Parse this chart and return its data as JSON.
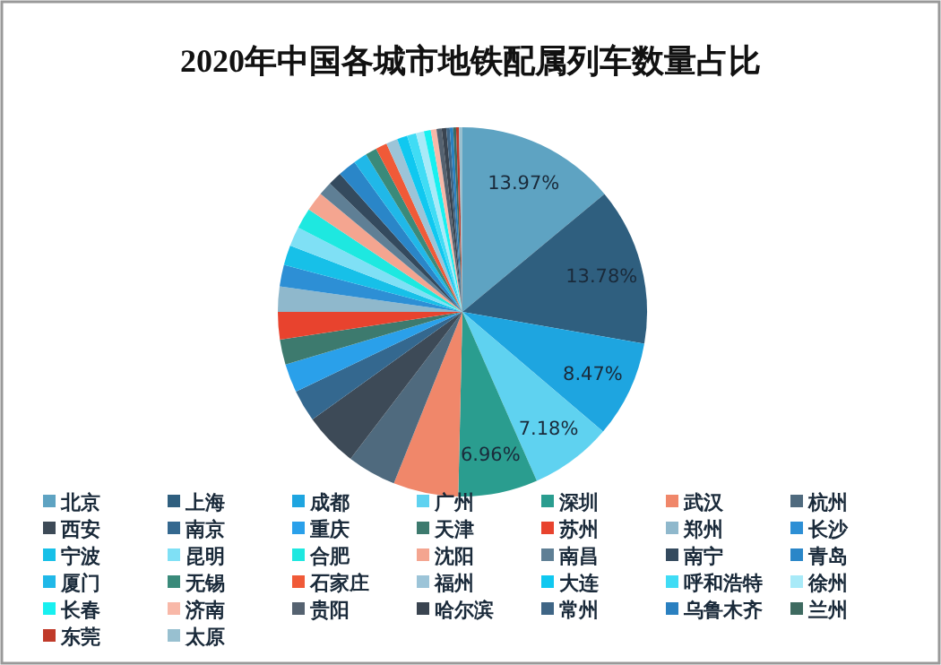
{
  "chart_data": {
    "type": "pie",
    "title": "2020年中国各城市地铁配属列车数量占比",
    "categories": [
      "北京",
      "上海",
      "成都",
      "广州",
      "深圳",
      "武汉",
      "杭州",
      "西安",
      "南京",
      "重庆",
      "天津",
      "苏州",
      "郑州",
      "长沙",
      "宁波",
      "昆明",
      "合肥",
      "沈阳",
      "南昌",
      "南宁",
      "青岛",
      "厦门",
      "无锡",
      "石家庄",
      "福州",
      "大连",
      "呼和浩特",
      "徐州",
      "长春",
      "济南",
      "贵阳",
      "哈尔滨",
      "常州",
      "乌鲁木齐",
      "兰州",
      "东莞",
      "太原"
    ],
    "values": [
      13.97,
      13.78,
      8.47,
      7.18,
      6.96,
      5.7,
      4.3,
      4.74,
      2.8,
      2.5,
      2.2,
      2.4,
      2.2,
      1.9,
      1.75,
      1.7,
      1.8,
      1.7,
      1.2,
      1.2,
      1.6,
      1.2,
      1.0,
      1.0,
      1.0,
      0.9,
      0.8,
      0.7,
      0.6,
      0.5,
      0.45,
      0.4,
      0.3,
      0.3,
      0.25,
      0.25,
      0.3
    ],
    "value_labels": [
      "13.97%",
      "13.78%",
      "8.47%",
      "7.18%",
      "6.96%",
      null,
      null,
      null,
      null,
      null,
      null,
      null,
      null,
      null,
      null,
      null,
      null,
      null,
      null,
      null,
      null,
      null,
      null,
      null,
      null,
      null,
      null,
      null,
      null,
      null,
      null,
      null,
      null,
      null,
      null,
      null,
      null
    ],
    "colors": [
      "#5ea3c2",
      "#2f5f7f",
      "#1ea5e0",
      "#5fd2f0",
      "#2a9d8f",
      "#f0876a",
      "#4f6a7e",
      "#3d4a57",
      "#34688f",
      "#2aa0ea",
      "#3d7a6e",
      "#e8432e",
      "#8fb8cc",
      "#2d8fd5",
      "#17c0e8",
      "#7fe0f5",
      "#1ee8e0",
      "#f4a590",
      "#5f7f95",
      "#344a5e",
      "#2a86c8",
      "#20b8e8",
      "#3a8a7a",
      "#f05a38",
      "#9cc4d8",
      "#10c8f0",
      "#40dcf5",
      "#a8eaf8",
      "#18f0f0",
      "#f8b8a8",
      "#556270",
      "#3a4450",
      "#3f6585",
      "#2a80c0",
      "#3e6a60",
      "#c03a2a",
      "#98c0d0"
    ],
    "legend": "bottom"
  }
}
